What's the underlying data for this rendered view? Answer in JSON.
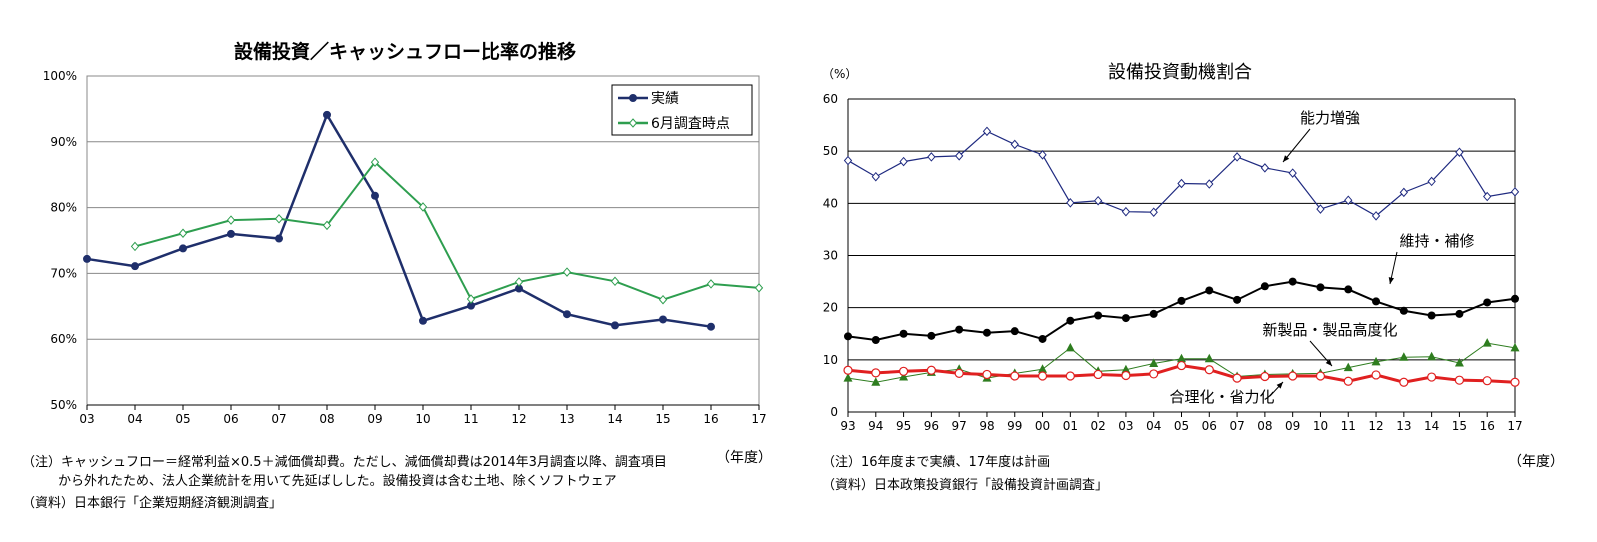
{
  "chart_data": [
    {
      "type": "line",
      "title": "設備投資／キャッシュフロー比率の推移",
      "xlabel": "（年度）",
      "x": [
        "03",
        "04",
        "05",
        "06",
        "07",
        "08",
        "09",
        "10",
        "11",
        "12",
        "13",
        "14",
        "15",
        "16",
        "17"
      ],
      "yticks": [
        "50%",
        "60%",
        "70%",
        "80%",
        "90%",
        "100%"
      ],
      "ylim": [
        50,
        100
      ],
      "grid": true,
      "legend": "top-right",
      "series": [
        {
          "name": "実績",
          "color": "#1f2f6b",
          "marker": "filled-circle",
          "values": [
            72.2,
            71.1,
            73.8,
            76.0,
            75.3,
            94.1,
            81.8,
            62.8,
            65.1,
            67.7,
            63.8,
            62.1,
            63.0,
            61.9,
            null
          ]
        },
        {
          "name": "6月調査時点",
          "color": "#2e9e4f",
          "marker": "open-diamond",
          "values": [
            null,
            74.1,
            76.1,
            78.1,
            78.3,
            77.3,
            86.9,
            80.1,
            66.1,
            68.7,
            70.2,
            68.8,
            66.0,
            68.4,
            67.8
          ]
        }
      ],
      "notes": [
        "（注）キャッシュフロー＝経常利益×0.5＋減価償却費。ただし、減価償却費は2014年3月調査以降、調査項目",
        "から外れたため、法人企業統計を用いて先延ばしした。設備投資は含む土地、除くソフトウェア",
        "（資料）日本銀行「企業短期経済観測調査」"
      ]
    },
    {
      "type": "line",
      "title": "設備投資動機割合",
      "ylabel": "（%）",
      "xlabel": "（年度）",
      "x": [
        "93",
        "94",
        "95",
        "96",
        "97",
        "98",
        "99",
        "00",
        "01",
        "02",
        "03",
        "04",
        "05",
        "06",
        "07",
        "08",
        "09",
        "10",
        "11",
        "12",
        "13",
        "14",
        "15",
        "16",
        "17"
      ],
      "yticks": [
        "0",
        "10",
        "20",
        "30",
        "40",
        "50",
        "60"
      ],
      "ylim": [
        0,
        60
      ],
      "grid": true,
      "series": [
        {
          "name": "能力増強",
          "color": "#1f2a80",
          "marker": "open-diamond",
          "values": [
            48.2,
            45.1,
            48.0,
            48.9,
            49.1,
            53.8,
            51.3,
            49.3,
            40.1,
            40.5,
            38.4,
            38.3,
            43.8,
            43.7,
            48.9,
            46.8,
            45.8,
            38.9,
            40.6,
            37.6,
            42.1,
            44.2,
            49.8,
            41.3,
            42.2
          ]
        },
        {
          "name": "維持・補修",
          "color": "#000000",
          "marker": "filled-circle",
          "values": [
            14.5,
            13.8,
            15.0,
            14.6,
            15.8,
            15.2,
            15.5,
            14.0,
            17.5,
            18.5,
            18.0,
            18.8,
            21.3,
            23.3,
            21.5,
            24.1,
            25.0,
            23.9,
            23.5,
            21.2,
            19.4,
            18.5,
            18.8,
            21.0,
            21.7
          ]
        },
        {
          "name": "新製品・製品高度化",
          "color": "#2e7d1f",
          "marker": "filled-triangle",
          "values": [
            6.5,
            5.7,
            6.7,
            7.6,
            8.2,
            6.5,
            7.4,
            8.2,
            12.3,
            7.8,
            8.1,
            9.3,
            10.2,
            10.2,
            6.8,
            7.2,
            7.3,
            7.4,
            8.5,
            9.6,
            10.5,
            10.6,
            9.4,
            13.2,
            12.3
          ]
        },
        {
          "name": "合理化・省力化",
          "color": "#e02020",
          "marker": "open-circle",
          "values": [
            8.0,
            7.5,
            7.8,
            8.0,
            7.4,
            7.2,
            6.9,
            6.9,
            6.9,
            7.2,
            7.0,
            7.3,
            8.9,
            8.1,
            6.5,
            6.8,
            6.9,
            6.9,
            5.9,
            7.1,
            5.7,
            6.7,
            6.1,
            6.0,
            5.7
          ]
        }
      ],
      "notes": [
        "（注）16年度まで実績、17年度は計画",
        "（資料）日本政策投資銀行「設備投資計画調査」"
      ]
    }
  ]
}
